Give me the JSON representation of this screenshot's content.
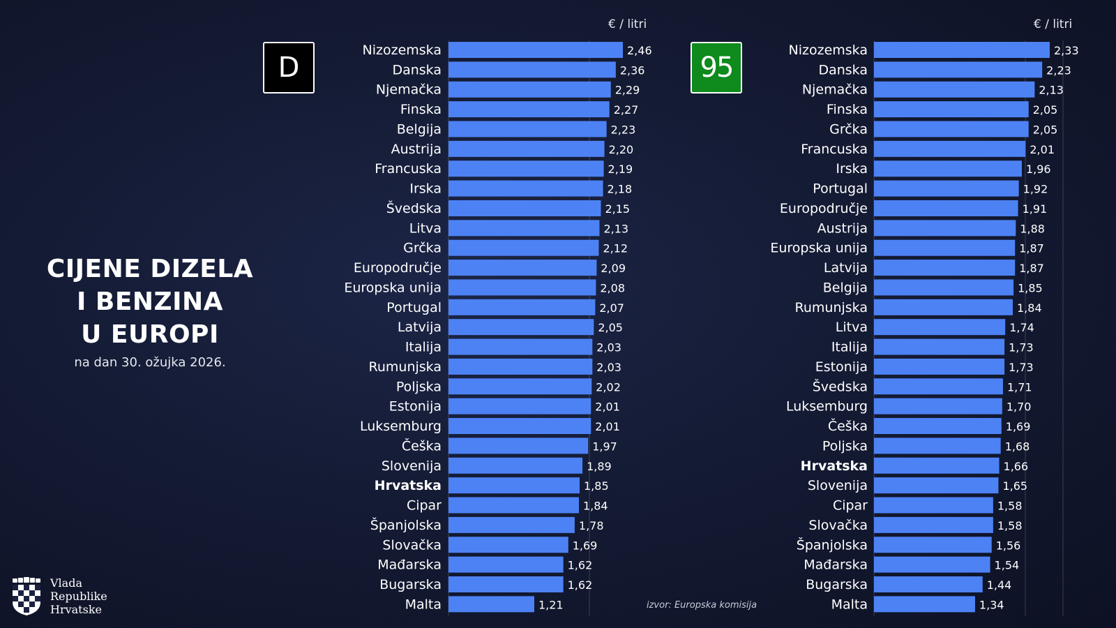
{
  "title": {
    "line1": "CIJENE DIZELA",
    "line2": "I BENZINA",
    "line3": "U EUROPI",
    "subtitle": "na dan 30. ožujka 2026."
  },
  "logo": {
    "line1": "Vlada",
    "line2": "Republike",
    "line3": "Hrvatske"
  },
  "source": "izvor: Europska komisija",
  "colors": {
    "bar": "#4d82f5",
    "highlight_eu": "#f0a847",
    "highlight_hr": "#e8262a",
    "diesel_badge": "#000000",
    "petrol_badge": "#0f8a1c"
  },
  "chart_data": [
    {
      "type": "bar",
      "orientation": "horizontal",
      "badge": "D",
      "unit_label": "€ / litri",
      "categories": [
        "Nizozemska",
        "Danska",
        "Njemačka",
        "Finska",
        "Belgija",
        "Austrija",
        "Francuska",
        "Irska",
        "Švedska",
        "Litva",
        "Grčka",
        "Europodručje",
        "Europska unija",
        "Portugal",
        "Latvija",
        "Italija",
        "Rumunjska",
        "Poljska",
        "Estonija",
        "Luksemburg",
        "Češka",
        "Slovenija",
        "Hrvatska",
        "Cipar",
        "Španjolska",
        "Slovačka",
        "Mađarska",
        "Bugarska",
        "Malta"
      ],
      "values": [
        2.46,
        2.36,
        2.29,
        2.27,
        2.23,
        2.2,
        2.19,
        2.18,
        2.15,
        2.13,
        2.12,
        2.09,
        2.08,
        2.07,
        2.05,
        2.03,
        2.03,
        2.02,
        2.01,
        2.01,
        1.97,
        1.89,
        1.85,
        1.84,
        1.78,
        1.69,
        1.62,
        1.62,
        1.21
      ],
      "value_labels": [
        "2,46",
        "2,36",
        "2,29",
        "2,27",
        "2,23",
        "2,20",
        "2,19",
        "2,18",
        "2,15",
        "2,13",
        "2,12",
        "2,09",
        "2,08",
        "2,07",
        "2,05",
        "2,03",
        "2,03",
        "2,02",
        "2,01",
        "2,01",
        "1,97",
        "1,89",
        "1,85",
        "1,84",
        "1,78",
        "1,69",
        "1,62",
        "1,62",
        "1,21"
      ],
      "highlight_eu": [
        "Europodručje",
        "Europska unija"
      ],
      "highlight_hr": [
        "Hrvatska"
      ],
      "xlim": [
        0,
        2.46
      ]
    },
    {
      "type": "bar",
      "orientation": "horizontal",
      "badge": "95",
      "unit_label": "€ / litri",
      "categories": [
        "Nizozemska",
        "Danska",
        "Njemačka",
        "Finska",
        "Grčka",
        "Francuska",
        "Irska",
        "Portugal",
        "Europodručje",
        "Austrija",
        "Europska unija",
        "Latvija",
        "Belgija",
        "Rumunjska",
        "Litva",
        "Italija",
        "Estonija",
        "Švedska",
        "Luksemburg",
        "Češka",
        "Poljska",
        "Hrvatska",
        "Slovenija",
        "Cipar",
        "Slovačka",
        "Španjolska",
        "Mađarska",
        "Bugarska",
        "Malta"
      ],
      "values": [
        2.33,
        2.23,
        2.13,
        2.05,
        2.05,
        2.01,
        1.96,
        1.92,
        1.91,
        1.88,
        1.87,
        1.87,
        1.85,
        1.84,
        1.74,
        1.73,
        1.73,
        1.71,
        1.7,
        1.69,
        1.68,
        1.66,
        1.65,
        1.58,
        1.58,
        1.56,
        1.54,
        1.44,
        1.34
      ],
      "value_labels": [
        "2,33",
        "2,23",
        "2,13",
        "2,05",
        "2,05",
        "2,01",
        "1,96",
        "1,92",
        "1,91",
        "1,88",
        "1,87",
        "1,87",
        "1,85",
        "1,84",
        "1,74",
        "1,73",
        "1,73",
        "1,71",
        "1,70",
        "1,69",
        "1,68",
        "1,66",
        "1,65",
        "1,58",
        "1,58",
        "1,56",
        "1,54",
        "1,44",
        "1,34"
      ],
      "highlight_eu": [
        "Europodručje",
        "Europska unija"
      ],
      "highlight_hr": [
        "Hrvatska"
      ],
      "xlim": [
        0,
        2.33
      ]
    }
  ]
}
